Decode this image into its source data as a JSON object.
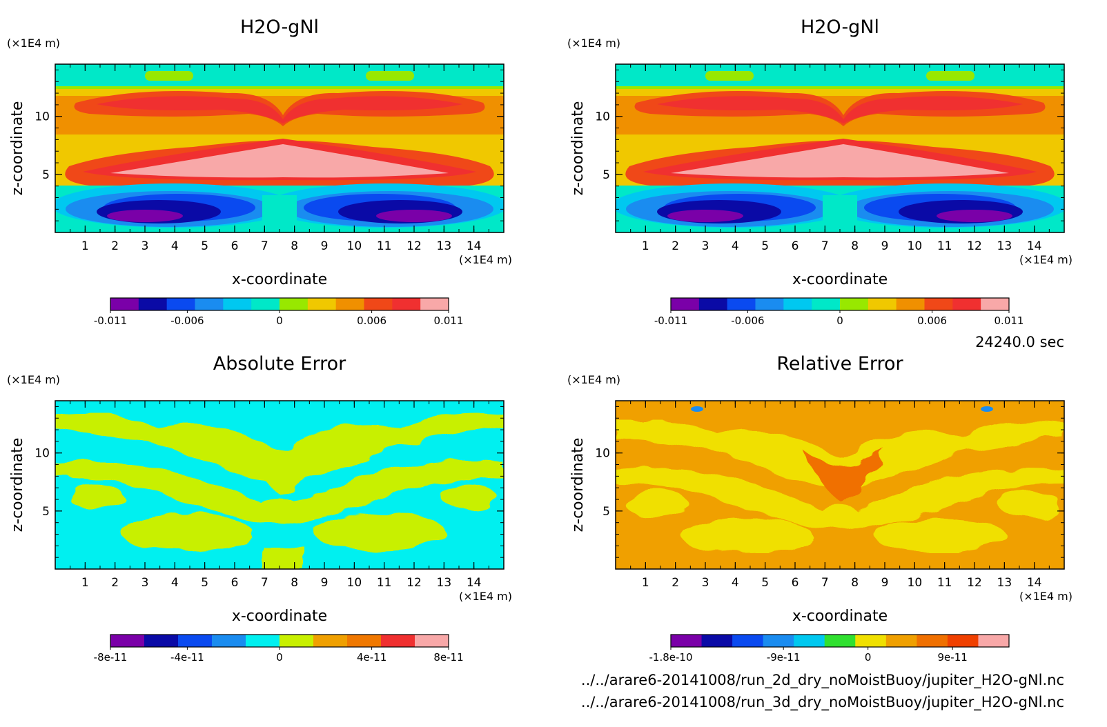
{
  "colors": {
    "field": [
      "#7a00a8",
      "#0a0aa6",
      "#0a4af0",
      "#1a8cf0",
      "#00c8f0",
      "#00e8c8",
      "#98e800",
      "#f0c800",
      "#f09000",
      "#f04818",
      "#f03030",
      "#f8a8a8"
    ],
    "abs": [
      "#7a00a8",
      "#0a0aa6",
      "#0a4af0",
      "#1a8cf0",
      "#00f0f0",
      "#c8f000",
      "#f0a000",
      "#f07800",
      "#f03030",
      "#f8a8a8"
    ],
    "rel": [
      "#7a00a8",
      "#0a0aa6",
      "#0a4af0",
      "#1a8cf0",
      "#00c8f0",
      "#30e030",
      "#f0e000",
      "#f0a000",
      "#f07000",
      "#f04000",
      "#f8a8a8"
    ]
  },
  "chart_data": [
    {
      "type": "heatmap",
      "title": "H2O-gNl",
      "xlabel": "x-coordinate",
      "ylabel": "z-coordinate",
      "x_unit": "(×1E4 m)",
      "y_unit": "(×1E4 m)",
      "xticks": [
        "1",
        "2",
        "3",
        "4",
        "5",
        "6",
        "7",
        "8",
        "9",
        "10",
        "11",
        "12",
        "13",
        "14"
      ],
      "yticks": [
        "5",
        "10"
      ],
      "xlim": [
        0,
        15
      ],
      "ylim": [
        0,
        14.5
      ],
      "colorbar_ticks": [
        "-0.011",
        "-0.006",
        "0",
        "0.006",
        "0.011"
      ]
    },
    {
      "type": "heatmap",
      "title": "H2O-gNl",
      "xlabel": "x-coordinate",
      "ylabel": "z-coordinate",
      "x_unit": "(×1E4 m)",
      "y_unit": "(×1E4 m)",
      "xticks": [
        "1",
        "2",
        "3",
        "4",
        "5",
        "6",
        "7",
        "8",
        "9",
        "10",
        "11",
        "12",
        "13",
        "14"
      ],
      "yticks": [
        "5",
        "10"
      ],
      "xlim": [
        0,
        15
      ],
      "ylim": [
        0,
        14.5
      ],
      "colorbar_ticks": [
        "-0.011",
        "-0.006",
        "0",
        "0.006",
        "0.011"
      ]
    },
    {
      "type": "heatmap",
      "title": "Absolute Error",
      "xlabel": "x-coordinate",
      "ylabel": "z-coordinate",
      "x_unit": "(×1E4 m)",
      "y_unit": "(×1E4 m)",
      "xticks": [
        "1",
        "2",
        "3",
        "4",
        "5",
        "6",
        "7",
        "8",
        "9",
        "10",
        "11",
        "12",
        "13",
        "14"
      ],
      "yticks": [
        "5",
        "10"
      ],
      "xlim": [
        0,
        15
      ],
      "ylim": [
        0,
        14.5
      ],
      "colorbar_ticks": [
        "-8e-11",
        "-4e-11",
        "0",
        "4e-11",
        "8e-11"
      ]
    },
    {
      "type": "heatmap",
      "title": "Relative Error",
      "xlabel": "x-coordinate",
      "ylabel": "z-coordinate",
      "x_unit": "(×1E4 m)",
      "y_unit": "(×1E4 m)",
      "xticks": [
        "1",
        "2",
        "3",
        "4",
        "5",
        "6",
        "7",
        "8",
        "9",
        "10",
        "11",
        "12",
        "13",
        "14"
      ],
      "yticks": [
        "5",
        "10"
      ],
      "xlim": [
        0,
        15
      ],
      "ylim": [
        0,
        14.5
      ],
      "colorbar_ticks": [
        "-1.8e-10",
        "-9e-11",
        "0",
        "9e-11"
      ]
    }
  ],
  "footer": {
    "time": "24240.0 sec",
    "file1": "../../arare6-20141008/run_2d_dry_noMoistBuoy/jupiter_H2O-gNl.nc",
    "file2": "../../arare6-20141008/run_3d_dry_noMoistBuoy/jupiter_H2O-gNl.nc"
  }
}
